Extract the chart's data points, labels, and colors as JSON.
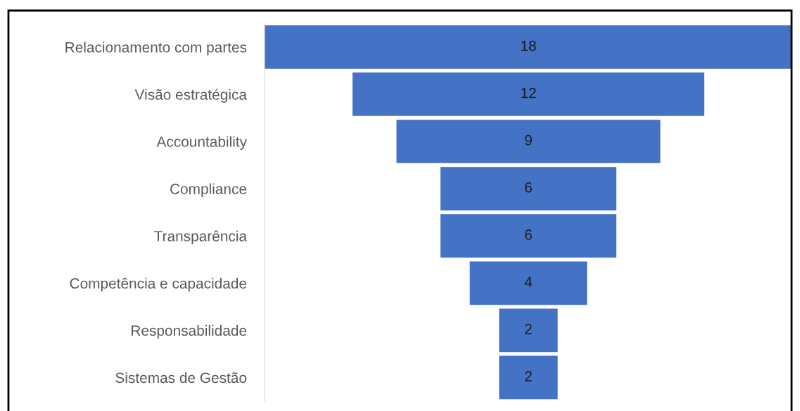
{
  "chart_data": {
    "type": "other",
    "categories": [
      "Relacionamento com partes",
      "Visão estratégica",
      "Accountability",
      "Compliance",
      "Transparência",
      "Competência e capacidade",
      "Responsabilidade",
      "Sistemas de Gestão"
    ],
    "values": [
      18,
      12,
      9,
      6,
      6,
      4,
      2,
      2
    ],
    "color": "#4472c4",
    "data_labels": true
  }
}
